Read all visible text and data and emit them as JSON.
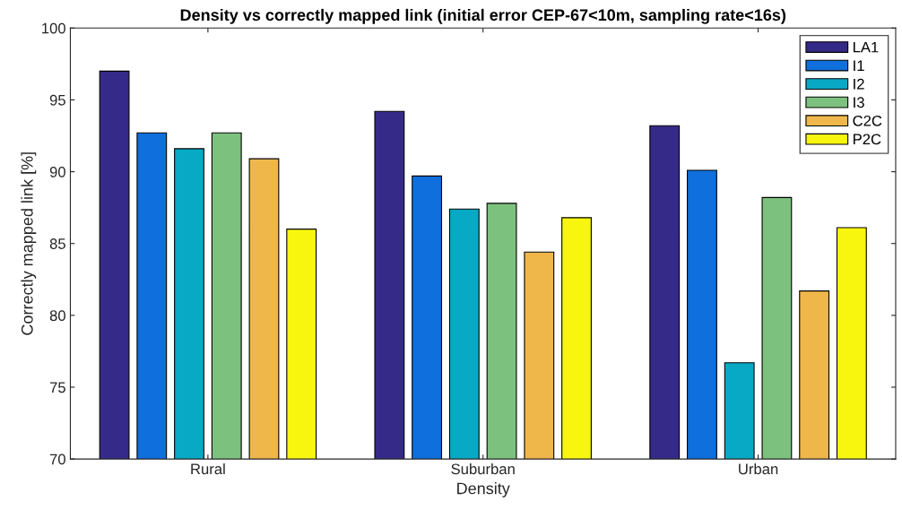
{
  "chart_data": {
    "type": "bar",
    "title": "Density vs correctly mapped link (initial error CEP-67<10m, sampling rate<16s)",
    "xlabel": "Density",
    "ylabel": "Correctly mapped link [%]",
    "categories": [
      "Rural",
      "Suburban",
      "Urban"
    ],
    "series": [
      {
        "name": "LA1",
        "color": "#352a87",
        "values": [
          97.0,
          94.2,
          93.2
        ]
      },
      {
        "name": "I1",
        "color": "#0f6fdc",
        "values": [
          92.7,
          89.7,
          90.1
        ]
      },
      {
        "name": "I2",
        "color": "#07a9c4",
        "values": [
          91.6,
          87.4,
          76.7
        ]
      },
      {
        "name": "I3",
        "color": "#7dc17e",
        "values": [
          92.7,
          87.8,
          88.2
        ]
      },
      {
        "name": "C2C",
        "color": "#efb74a",
        "values": [
          90.9,
          84.4,
          81.7
        ]
      },
      {
        "name": "P2C",
        "color": "#f8f60f",
        "values": [
          86.0,
          86.8,
          86.1
        ]
      }
    ],
    "ylim": [
      70,
      100
    ],
    "yticks": [
      70,
      75,
      80,
      85,
      90,
      95,
      100
    ],
    "grid": false,
    "legend": "top right"
  }
}
